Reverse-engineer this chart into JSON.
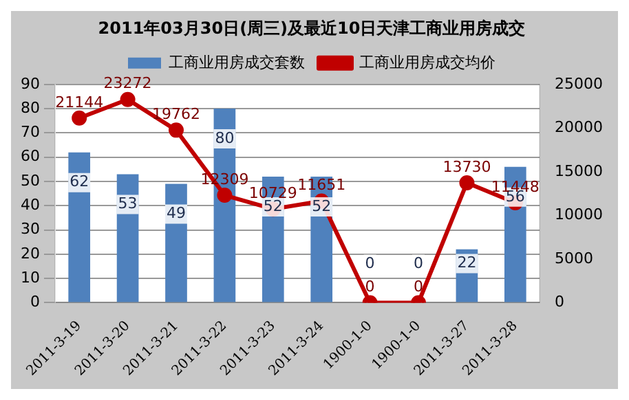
{
  "chart_data": {
    "type": "bar",
    "title": "2011年03月30日(周三)及最近10日天津工商业用房成交",
    "categories": [
      "2011-3-19",
      "2011-3-20",
      "2011-3-21",
      "2011-3-22",
      "2011-3-23",
      "2011-3-24",
      "1900-1-0",
      "1900-1-0",
      "2011-3-27",
      "2011-3-28"
    ],
    "series": [
      {
        "name": "工商业用房成交套数",
        "color": "#4f81bd",
        "values": [
          62,
          53,
          49,
          80,
          52,
          52,
          0,
          0,
          22,
          56
        ]
      },
      {
        "name": "工商业用房成交均价",
        "type": "line",
        "axis": "y2",
        "color": "#c00000",
        "values": [
          21144,
          23272,
          19762,
          12309,
          10729,
          11651,
          0,
          0,
          13730,
          11448
        ]
      }
    ],
    "ylim": [
      0,
      90
    ],
    "yticks": [
      0,
      10,
      20,
      30,
      40,
      50,
      60,
      70,
      80,
      90
    ],
    "y2lim": [
      0,
      25000
    ],
    "y2ticks": [
      0,
      5000,
      10000,
      15000,
      20000,
      25000
    ],
    "grid": "y",
    "legend": "top",
    "marker": "circle",
    "data_labels": true
  }
}
